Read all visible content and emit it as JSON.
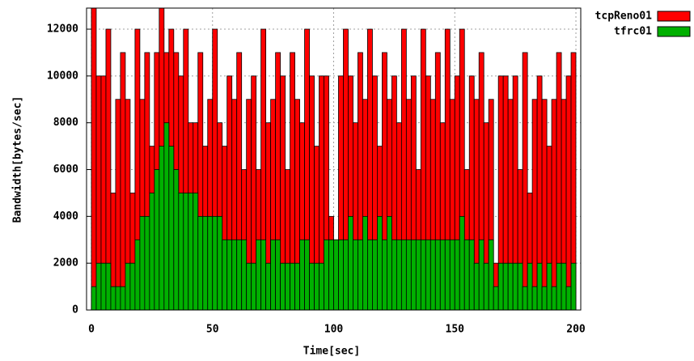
{
  "chart_data": {
    "type": "bar",
    "x_label": "Time[sec]",
    "y_label": "Bandwidth[bytes/sec]",
    "x": [
      0,
      2,
      4,
      6,
      8,
      10,
      12,
      14,
      16,
      18,
      20,
      22,
      24,
      26,
      28,
      30,
      32,
      34,
      36,
      38,
      40,
      42,
      44,
      46,
      48,
      50,
      52,
      54,
      56,
      58,
      60,
      62,
      64,
      66,
      68,
      70,
      72,
      74,
      76,
      78,
      80,
      82,
      84,
      86,
      88,
      90,
      92,
      94,
      96,
      98,
      100,
      102,
      104,
      106,
      108,
      110,
      112,
      114,
      116,
      118,
      120,
      122,
      124,
      126,
      128,
      130,
      132,
      134,
      136,
      138,
      140,
      142,
      144,
      146,
      148,
      150,
      152,
      154,
      156,
      158,
      160,
      162,
      164,
      166,
      168,
      170,
      172,
      174,
      176,
      178,
      180,
      182,
      184,
      186,
      188,
      190,
      192,
      194,
      196,
      198
    ],
    "series": [
      {
        "name": "tcpReno01",
        "color": "#ff0000",
        "values": [
          12900,
          10000,
          10000,
          12000,
          5000,
          9000,
          11000,
          9000,
          5000,
          12000,
          9000,
          11000,
          7000,
          11000,
          12900,
          11000,
          12000,
          11000,
          10000,
          12000,
          8000,
          8000,
          11000,
          7000,
          9000,
          12000,
          8000,
          7000,
          10000,
          9000,
          11000,
          6000,
          9000,
          10000,
          6000,
          12000,
          8000,
          9000,
          11000,
          10000,
          6000,
          11000,
          9000,
          8000,
          12000,
          10000,
          7000,
          10000,
          10000,
          4000,
          3000,
          10000,
          12000,
          10000,
          8000,
          11000,
          9000,
          12000,
          10000,
          7000,
          11000,
          9000,
          10000,
          8000,
          12000,
          9000,
          10000,
          6000,
          12000,
          10000,
          9000,
          11000,
          8000,
          12000,
          9000,
          10000,
          12000,
          6000,
          10000,
          9000,
          11000,
          8000,
          9000,
          2000,
          10000,
          10000,
          9000,
          10000,
          6000,
          11000,
          5000,
          9000,
          10000,
          9000,
          7000,
          9000,
          11000,
          9000,
          10000,
          11000
        ]
      },
      {
        "name": "tfrc01",
        "color": "#00b000",
        "values": [
          1000,
          2000,
          2000,
          2000,
          1000,
          1000,
          1000,
          2000,
          2000,
          3000,
          4000,
          4000,
          5000,
          6000,
          7000,
          8000,
          7000,
          6000,
          5000,
          5000,
          5000,
          5000,
          4000,
          4000,
          4000,
          4000,
          4000,
          3000,
          3000,
          3000,
          3000,
          3000,
          2000,
          2000,
          3000,
          3000,
          2000,
          3000,
          3000,
          2000,
          2000,
          2000,
          2000,
          3000,
          3000,
          2000,
          2000,
          2000,
          3000,
          3000,
          3000,
          3000,
          3000,
          4000,
          3000,
          3000,
          4000,
          3000,
          3000,
          4000,
          3000,
          4000,
          3000,
          3000,
          3000,
          3000,
          3000,
          3000,
          3000,
          3000,
          3000,
          3000,
          3000,
          3000,
          3000,
          3000,
          4000,
          3000,
          3000,
          2000,
          3000,
          2000,
          3000,
          1000,
          2000,
          2000,
          2000,
          2000,
          2000,
          1000,
          2000,
          1000,
          2000,
          1000,
          2000,
          1000,
          2000,
          2000,
          1000,
          2000
        ]
      }
    ],
    "xlim": [
      -2,
      202
    ],
    "ylim": [
      0,
      12900
    ],
    "xticks": [
      0,
      50,
      100,
      150,
      200
    ],
    "yticks": [
      0,
      2000,
      4000,
      6000,
      8000,
      10000,
      12000
    ],
    "grid": true,
    "legend": "top-right"
  }
}
